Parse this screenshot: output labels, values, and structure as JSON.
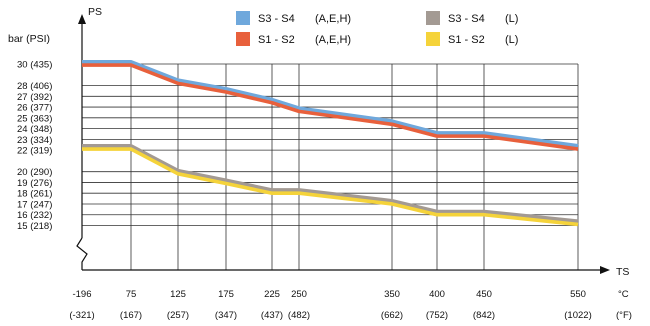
{
  "chart_data": {
    "type": "line",
    "y_axis_name": "PS",
    "y_unit": "bar (PSI)",
    "x_axis_name": "TS",
    "x_unit_c": "°C",
    "x_unit_f": "(°F)",
    "x_ticks": [
      {
        "c": "-196",
        "f": "(-321)",
        "v": -196
      },
      {
        "c": "75",
        "f": "(167)",
        "v": 75
      },
      {
        "c": "125",
        "f": "(257)",
        "v": 125
      },
      {
        "c": "175",
        "f": "(347)",
        "v": 175
      },
      {
        "c": "225",
        "f": "(437)",
        "v": 225
      },
      {
        "c": "250",
        "f": "(482)",
        "v": 250
      },
      {
        "c": "350",
        "f": "(662)",
        "v": 350
      },
      {
        "c": "400",
        "f": "(752)",
        "v": 400
      },
      {
        "c": "450",
        "f": "(842)",
        "v": 450
      },
      {
        "c": "550",
        "f": "(1022)",
        "v": 550
      }
    ],
    "y_ticks": [
      {
        "label": "30  (435)",
        "v": 30
      },
      {
        "label": "28  (406)",
        "v": 28
      },
      {
        "label": "27  (392)",
        "v": 27
      },
      {
        "label": "26  (377)",
        "v": 26
      },
      {
        "label": "25  (363)",
        "v": 25
      },
      {
        "label": "24  (348)",
        "v": 24
      },
      {
        "label": "23  (334)",
        "v": 23
      },
      {
        "label": "22  (319)",
        "v": 22
      },
      {
        "label": "20  (290)",
        "v": 20
      },
      {
        "label": "19  (276)",
        "v": 19
      },
      {
        "label": "18  (261)",
        "v": 18
      },
      {
        "label": "17  (247)",
        "v": 17
      },
      {
        "label": "16  (232)",
        "v": 16
      },
      {
        "label": "15  (218)",
        "v": 15
      }
    ],
    "grid": true,
    "legend_position": "top",
    "series": [
      {
        "name": "S3 - S4",
        "group": "(A,E,H)",
        "color": "#6fa8dc",
        "x": [
          -196,
          75,
          125,
          175,
          225,
          250,
          350,
          400,
          450,
          550
        ],
        "y": [
          30.2,
          30.2,
          28.5,
          27.7,
          26.7,
          25.9,
          24.7,
          23.6,
          23.6,
          22.4
        ]
      },
      {
        "name": "S1 - S2",
        "group": "(A,E,H)",
        "color": "#e8603c",
        "x": [
          -196,
          75,
          125,
          175,
          225,
          250,
          350,
          400,
          450,
          550
        ],
        "y": [
          29.9,
          29.9,
          28.2,
          27.4,
          26.4,
          25.6,
          24.4,
          23.3,
          23.3,
          22.1
        ]
      },
      {
        "name": "S3 - S4",
        "group": "(L)",
        "color": "#a39a93",
        "x": [
          -196,
          75,
          125,
          175,
          225,
          250,
          350,
          400,
          450,
          550
        ],
        "y": [
          22.4,
          22.4,
          20.1,
          19.2,
          18.3,
          18.3,
          17.3,
          16.3,
          16.3,
          15.4
        ]
      },
      {
        "name": "S1 - S2",
        "group": "(L)",
        "color": "#f5d33a",
        "x": [
          -196,
          75,
          125,
          175,
          225,
          250,
          350,
          400,
          450,
          550
        ],
        "y": [
          22.1,
          22.1,
          19.8,
          18.9,
          18.0,
          18.0,
          17.0,
          16.0,
          16.0,
          15.1
        ]
      }
    ]
  }
}
